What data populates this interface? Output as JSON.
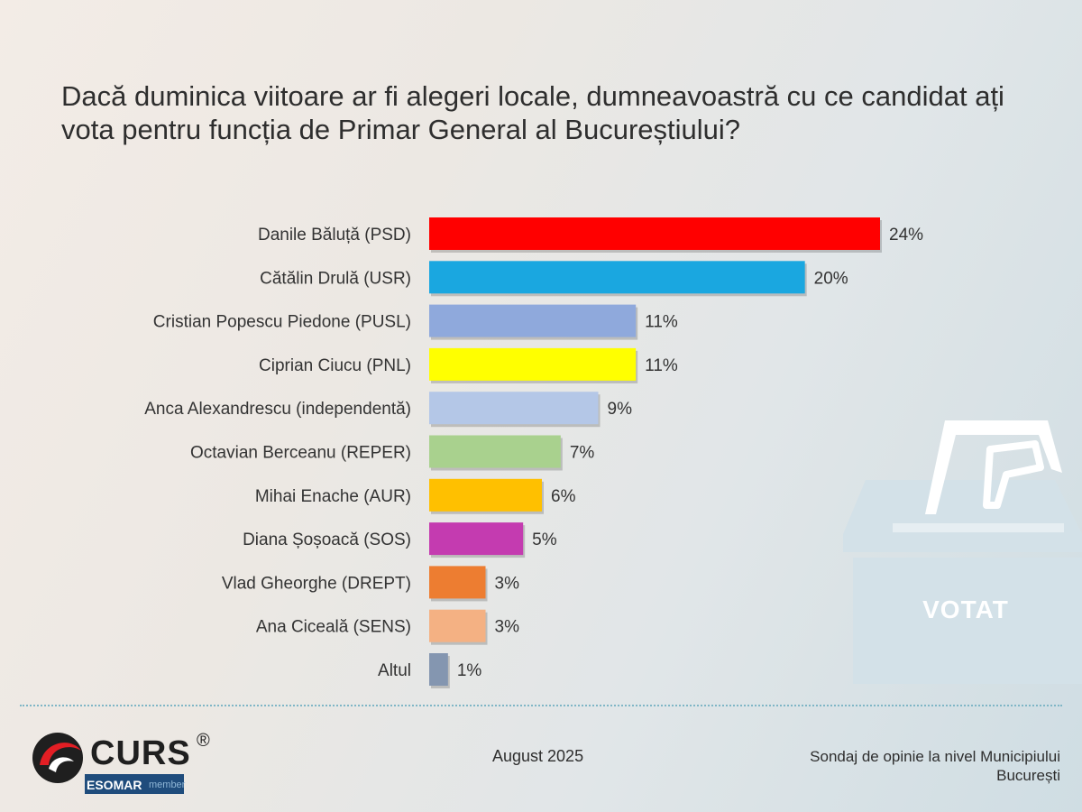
{
  "header": {
    "title": "Dacă duminica viitoare ar fi alegeri locale, dumneavoastră cu ce candidat ați vota pentru funcția de Primar General al Bucureștiului?"
  },
  "chart_data": {
    "type": "bar",
    "orientation": "horizontal",
    "title": "Dacă duminica viitoare ar fi alegeri locale, dumneavoastră cu ce candidat ați vota pentru funcția de Primar General al Bucureștiului?",
    "xlabel": "",
    "ylabel": "",
    "grid": false,
    "xlim": [
      0,
      24
    ],
    "value_suffix": "%",
    "categories": [
      "Danile Băluță (PSD)",
      "Cătălin Drulă (USR)",
      "Cristian Popescu Piedone (PUSL)",
      "Ciprian Ciucu (PNL)",
      "Anca Alexandrescu (independentă)",
      "Octavian Berceanu (REPER)",
      "Mihai Enache (AUR)",
      "Diana Șoșoacă (SOS)",
      "Vlad Gheorghe (DREPT)",
      "Ana Ciceală (SENS)",
      "Altul"
    ],
    "values": [
      24,
      20,
      11,
      11,
      9,
      7,
      6,
      5,
      3,
      3,
      1
    ],
    "data_labels": [
      "24%",
      "20%",
      "11%",
      "11%",
      "9%",
      "7%",
      "6%",
      "5%",
      "3%",
      "3%",
      "1%"
    ],
    "colors": [
      "#ff0000",
      "#1aa7e0",
      "#8fa9dc",
      "#ffff00",
      "#b4c7e7",
      "#a9d18e",
      "#ffc000",
      "#c43bb0",
      "#ed7d31",
      "#f4b183",
      "#8496b0"
    ]
  },
  "decoration": {
    "ballot_box_label": "VOTAT"
  },
  "footer": {
    "logo_text": "CURS",
    "logo_registered": "®",
    "esomar_text": "ESOMAR",
    "esomar_member": "member",
    "date": "August 2025",
    "source_line1": "Sondaj de opinie la nivel Municipiului",
    "source_line2": "București"
  }
}
